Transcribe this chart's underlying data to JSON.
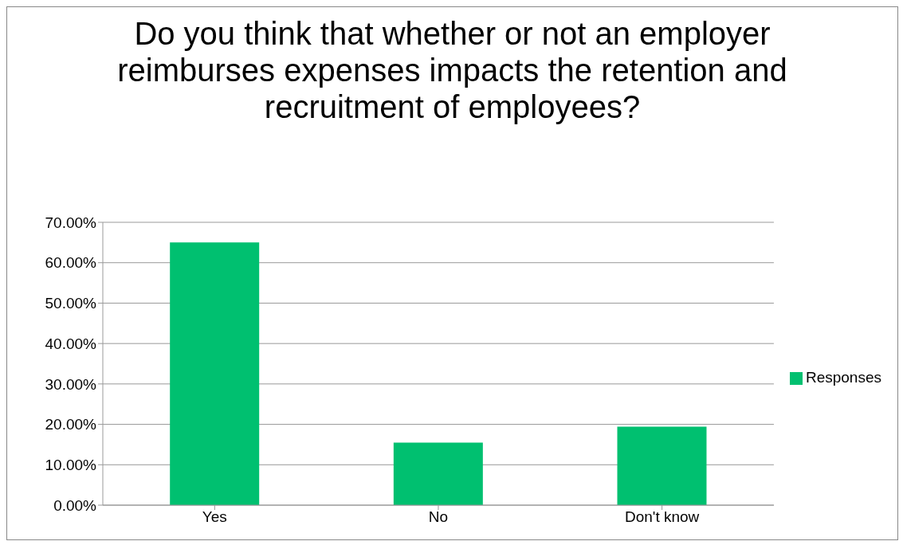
{
  "chart_data": {
    "type": "bar",
    "title": "Do you think that whether or not an employer reimburses expenses impacts the retention and recruitment of employees?",
    "categories": [
      "Yes",
      "No",
      "Don't know"
    ],
    "series": [
      {
        "name": "Responses",
        "color": "#00c070",
        "values": [
          65,
          15.5,
          19.4
        ]
      }
    ],
    "ylim": [
      0,
      70
    ],
    "yticks": [
      {
        "value": 0,
        "label": "0.00%"
      },
      {
        "value": 10,
        "label": "10.00%"
      },
      {
        "value": 20,
        "label": "20.00%"
      },
      {
        "value": 30,
        "label": "30.00%"
      },
      {
        "value": 40,
        "label": "40.00%"
      },
      {
        "value": 50,
        "label": "50.00%"
      },
      {
        "value": 60,
        "label": "60.00%"
      },
      {
        "value": 70,
        "label": "70.00%"
      }
    ],
    "grid": "y",
    "legend": "right"
  }
}
